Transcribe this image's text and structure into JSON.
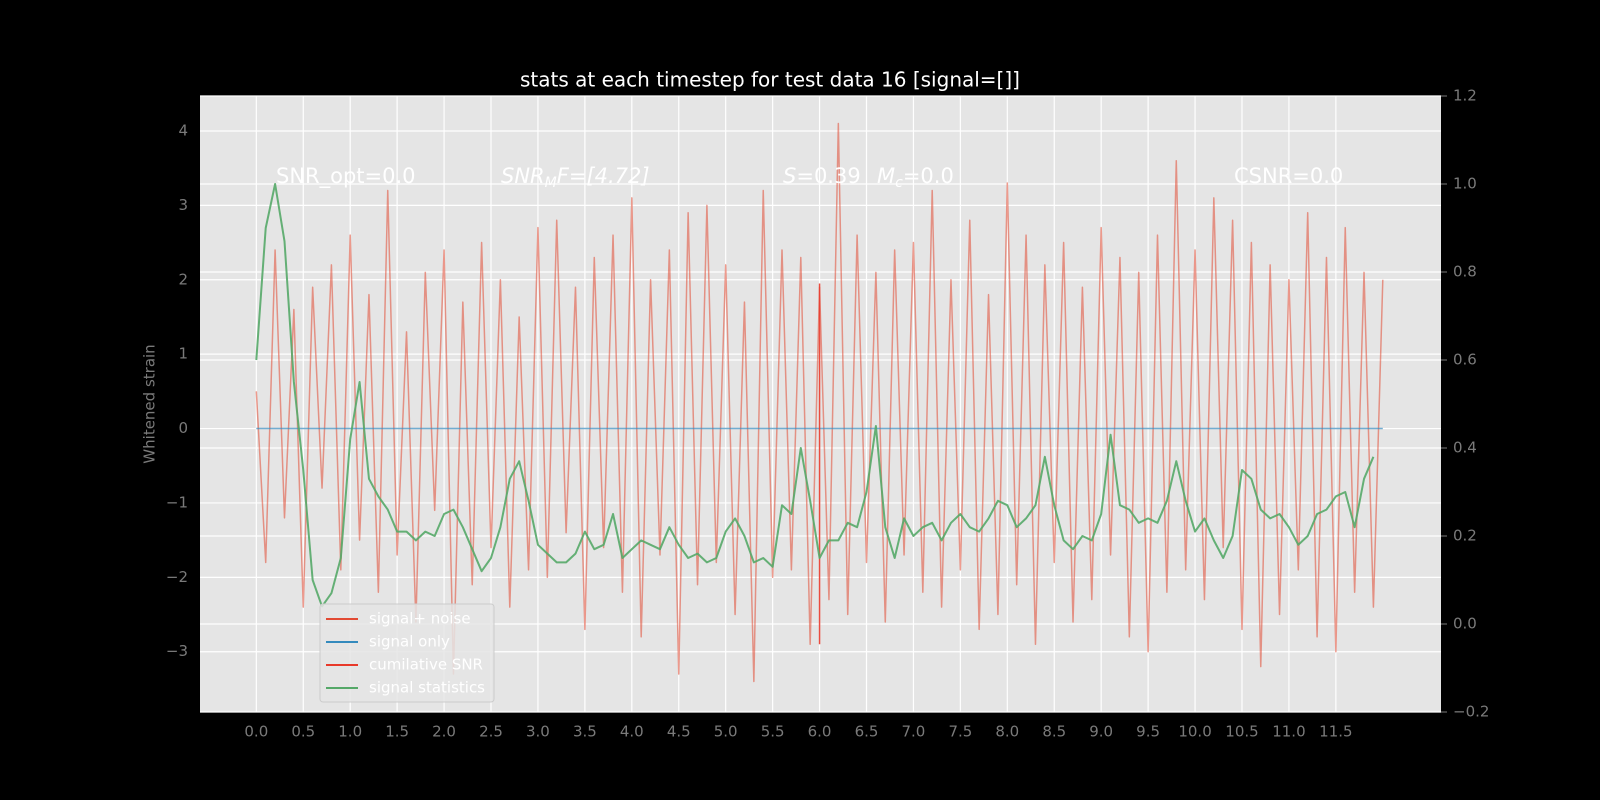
{
  "chart_data": {
    "type": "line",
    "title": "stats at each timestep for test data 16 [signal=[]]",
    "y_label": "Whitened strain",
    "annotations": [
      [
        "SNR_opt=0.0"
      ],
      [
        "SNR",
        "M",
        "F=[4.72]"
      ],
      [
        "S",
        "=0.39"
      ],
      [
        "M",
        "c",
        "=0.0"
      ],
      [
        "CSNR=0.0"
      ]
    ],
    "xlim": [
      -0.6,
      12.62
    ],
    "xticks": [
      {
        "value": 0,
        "label": "0.0"
      },
      0.5,
      {
        "value": 1,
        "label": "1.0"
      },
      1.5,
      {
        "value": 2,
        "label": "2.0"
      },
      2.5,
      {
        "value": 3,
        "label": "3.0"
      },
      3.5,
      {
        "value": 4,
        "label": "4.0"
      },
      4.5,
      {
        "value": 5,
        "label": "5.0"
      },
      5.5,
      {
        "value": 6,
        "label": "6.0"
      },
      6.5,
      {
        "value": 7,
        "label": "7.0"
      },
      7.5,
      {
        "value": 8,
        "label": "8.0"
      },
      8.5,
      {
        "value": 9,
        "label": "9.0"
      },
      9.5,
      {
        "value": 10,
        "label": "10.0"
      },
      10.5,
      {
        "value": 11,
        "label": "11.0"
      },
      11.5
    ],
    "ylim": [
      -3.81,
      4.47
    ],
    "yticks": [
      {
        "value": -3,
        "label": "−3"
      },
      {
        "value": -2,
        "label": "−2"
      },
      {
        "value": -1,
        "label": "−1"
      },
      0,
      1,
      2,
      3,
      4
    ],
    "y2lim": [
      -0.2,
      1.2
    ],
    "y2ticks": [
      {
        "value": -0.2,
        "label": "−0.2"
      },
      {
        "value": 0,
        "label": "0.0"
      },
      0.2,
      0.4,
      0.6,
      0.8,
      {
        "value": 1,
        "label": "1.0"
      },
      1.2
    ],
    "grid": true,
    "legend": "lower left",
    "x": [
      0,
      0.1,
      0.2,
      0.3,
      0.4,
      0.5,
      0.6,
      0.7,
      0.8,
      0.9,
      1,
      1.1,
      1.2,
      1.3,
      1.4,
      1.5,
      1.6,
      1.7,
      1.8,
      1.9,
      2,
      2.1,
      2.2,
      2.3,
      2.4,
      2.5,
      2.6,
      2.7,
      2.8,
      2.9,
      3,
      3.1,
      3.2,
      3.3,
      3.4,
      3.5,
      3.6,
      3.7,
      3.8,
      3.9,
      4,
      4.1,
      4.2,
      4.3,
      4.4,
      4.5,
      4.6,
      4.7,
      4.8,
      4.9,
      5,
      5.1,
      5.2,
      5.3,
      5.4,
      5.5,
      5.6,
      5.7,
      5.8,
      5.9,
      6,
      6.1,
      6.2,
      6.3,
      6.4,
      6.5,
      6.6,
      6.7,
      6.8,
      6.9,
      7,
      7.1,
      7.2,
      7.3,
      7.4,
      7.5,
      7.6,
      7.7,
      7.8,
      7.9,
      8,
      8.1,
      8.2,
      8.3,
      8.4,
      8.5,
      8.6,
      8.7,
      8.8,
      8.9,
      9,
      9.1,
      9.2,
      9.3,
      9.4,
      9.5,
      9.6,
      9.7,
      9.8,
      9.9,
      10,
      10.1,
      10.2,
      10.3,
      10.4,
      10.5,
      10.6,
      10.7,
      10.8,
      10.9,
      11,
      11.1,
      11.2,
      11.3,
      11.4,
      11.5,
      11.6,
      11.7,
      11.8,
      11.9,
      12
    ],
    "series": [
      {
        "name": "signal+ noise",
        "color": "#e24a33",
        "values": [
          0.5,
          -1.8,
          2.4,
          -1.2,
          1.6,
          -2.4,
          1.9,
          -0.8,
          2.2,
          -1.9,
          2.6,
          -1.5,
          1.8,
          -2.2,
          3.2,
          -1.7,
          1.3,
          -2.6,
          2.1,
          -1.1,
          2.4,
          -3.3,
          1.7,
          -2.1,
          2.5,
          -1.6,
          2,
          -2.4,
          1.5,
          -1.9,
          2.7,
          -2,
          2.8,
          -1.4,
          1.9,
          -2.7,
          2.3,
          -1.6,
          2.6,
          -2.2,
          3.1,
          -2.8,
          2,
          -1.7,
          2.4,
          -3.3,
          2.9,
          -2.1,
          3,
          -1.8,
          2.2,
          -2.5,
          1.7,
          -3.4,
          3.2,
          -2,
          2.4,
          -1.9,
          2.3,
          -2.9,
          1.9,
          -2.3,
          4.1,
          -2.5,
          2.6,
          -1.8,
          2.1,
          -2.6,
          2.4,
          -1.7,
          2.5,
          -2.2,
          3.2,
          -2.4,
          2,
          -1.9,
          2.8,
          -2.7,
          1.8,
          -2.5,
          3.3,
          -2.1,
          2.6,
          -2.9,
          2.2,
          -1.8,
          2.5,
          -2.6,
          1.9,
          -2.3,
          2.7,
          -1.7,
          2.3,
          -2.8,
          2.1,
          -3,
          2.6,
          -2.2,
          3.6,
          -1.9,
          2.4,
          -2.3,
          3.1,
          -1.6,
          2.8,
          -2.7,
          2.5,
          -3.2,
          2.2,
          -2.5,
          2,
          -1.9,
          2.9,
          -2.8,
          2.3,
          -3,
          2.7,
          -2.2,
          2.1,
          -2.4,
          2
        ]
      },
      {
        "name": "signal only",
        "color": "#348abd",
        "x": [
          0,
          12
        ],
        "values": [
          0,
          0
        ]
      },
      {
        "name": "cumilative SNR",
        "color": "#e8392a",
        "x": [
          6,
          6
        ],
        "values": [
          -2.9,
          1.95
        ]
      },
      {
        "name": "signal statistics",
        "color": "#55a868",
        "axis": "y2",
        "values": [
          0.6,
          0.9,
          1.0,
          0.87,
          0.55,
          0.35,
          0.1,
          0.04,
          0.07,
          0.15,
          0.42,
          0.55,
          0.33,
          0.29,
          0.26,
          0.21,
          0.21,
          0.19,
          0.21,
          0.2,
          0.25,
          0.26,
          0.22,
          0.17,
          0.12,
          0.15,
          0.22,
          0.33,
          0.37,
          0.28,
          0.18,
          0.16,
          0.14,
          0.14,
          0.16,
          0.21,
          0.17,
          0.18,
          0.25,
          0.15,
          0.17,
          0.19,
          0.18,
          0.17,
          0.22,
          0.18,
          0.15,
          0.16,
          0.14,
          0.15,
          0.21,
          0.24,
          0.2,
          0.14,
          0.15,
          0.13,
          0.27,
          0.25,
          0.4,
          0.28,
          0.15,
          0.19,
          0.19,
          0.23,
          0.22,
          0.3,
          0.45,
          0.22,
          0.15,
          0.24,
          0.2,
          0.22,
          0.23,
          0.19,
          0.23,
          0.25,
          0.22,
          0.21,
          0.24,
          0.28,
          0.27,
          0.22,
          0.24,
          0.27,
          0.38,
          0.27,
          0.19,
          0.17,
          0.2,
          0.19,
          0.25,
          0.43,
          0.27,
          0.26,
          0.23,
          0.24,
          0.23,
          0.28,
          0.37,
          0.28,
          0.21,
          0.24,
          0.19,
          0.15,
          0.2,
          0.35,
          0.33,
          0.26,
          0.24,
          0.25,
          0.22,
          0.18,
          0.2,
          0.25,
          0.26,
          0.29,
          0.3,
          0.22,
          0.33,
          0.38,
          null
        ]
      }
    ]
  }
}
